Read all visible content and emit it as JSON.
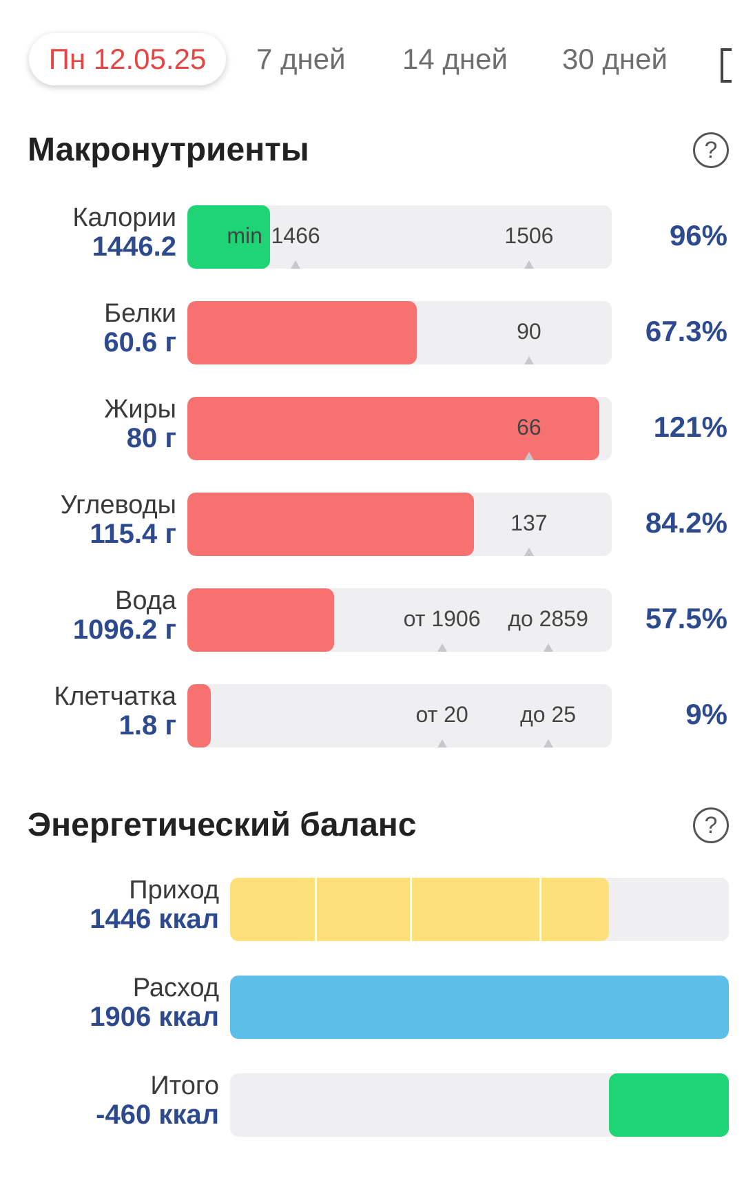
{
  "tabs": [
    {
      "label": "Пн 12.05.25",
      "active": true
    },
    {
      "label": "7 дней",
      "active": false
    },
    {
      "label": "14 дней",
      "active": false
    },
    {
      "label": "30 дней",
      "active": false
    }
  ],
  "colors": {
    "green": "#1fd474",
    "red": "#f87171",
    "yellow": "#fde07a",
    "blue": "#5ebeea",
    "accent": "#e54545",
    "value": "#2e4a8f"
  },
  "macros": {
    "title": "Макронутриенты",
    "help_icon": "question-circle-icon",
    "rows": [
      {
        "name": "Калории",
        "value": "1446.2",
        "percent": "96%",
        "fill_percent": 19.5,
        "color": "green",
        "marks": [
          {
            "label": "min",
            "at": 13.5
          },
          {
            "label": "1466",
            "at": 25.5
          },
          {
            "label": "1506",
            "at": 80.5
          }
        ]
      },
      {
        "name": "Белки",
        "value": "60.6 г",
        "percent": "67.3%",
        "fill_percent": 54,
        "color": "red",
        "marks": [
          {
            "label": "90",
            "at": 80.5
          }
        ]
      },
      {
        "name": "Жиры",
        "value": "80 г",
        "percent": "121%",
        "fill_percent": 97,
        "color": "red",
        "marks": [
          {
            "label": "66",
            "at": 80.5
          }
        ]
      },
      {
        "name": "Углеводы",
        "value": "115.4 г",
        "percent": "84.2%",
        "fill_percent": 67.5,
        "color": "red",
        "marks": [
          {
            "label": "137",
            "at": 80.5
          }
        ]
      },
      {
        "name": "Вода",
        "value": "1096.2 г",
        "percent": "57.5%",
        "fill_percent": 34.5,
        "color": "red",
        "marks": [
          {
            "label": "от 1906",
            "at": 60
          },
          {
            "label": "до 2859",
            "at": 85
          }
        ]
      },
      {
        "name": "Клетчатка",
        "value": "1.8 г",
        "percent": "9%",
        "fill_percent": 5.5,
        "color": "red",
        "marks": [
          {
            "label": "от 20",
            "at": 60
          },
          {
            "label": "до 25",
            "at": 85
          }
        ]
      }
    ]
  },
  "energy": {
    "title": "Энергетический баланс",
    "help_icon": "question-circle-icon",
    "rows": [
      {
        "name": "Приход",
        "value": "1446 ккал",
        "fill_start": 0,
        "fill_percent": 76,
        "color": "yellow",
        "dividers": [
          17,
          36,
          62
        ]
      },
      {
        "name": "Расход",
        "value": "1906 ккал",
        "fill_start": 0,
        "fill_percent": 100,
        "color": "blue",
        "dividers": []
      },
      {
        "name": "Итого",
        "value": "-460 ккал",
        "fill_start": 76,
        "fill_percent": 24,
        "color": "green",
        "dividers": []
      }
    ]
  }
}
